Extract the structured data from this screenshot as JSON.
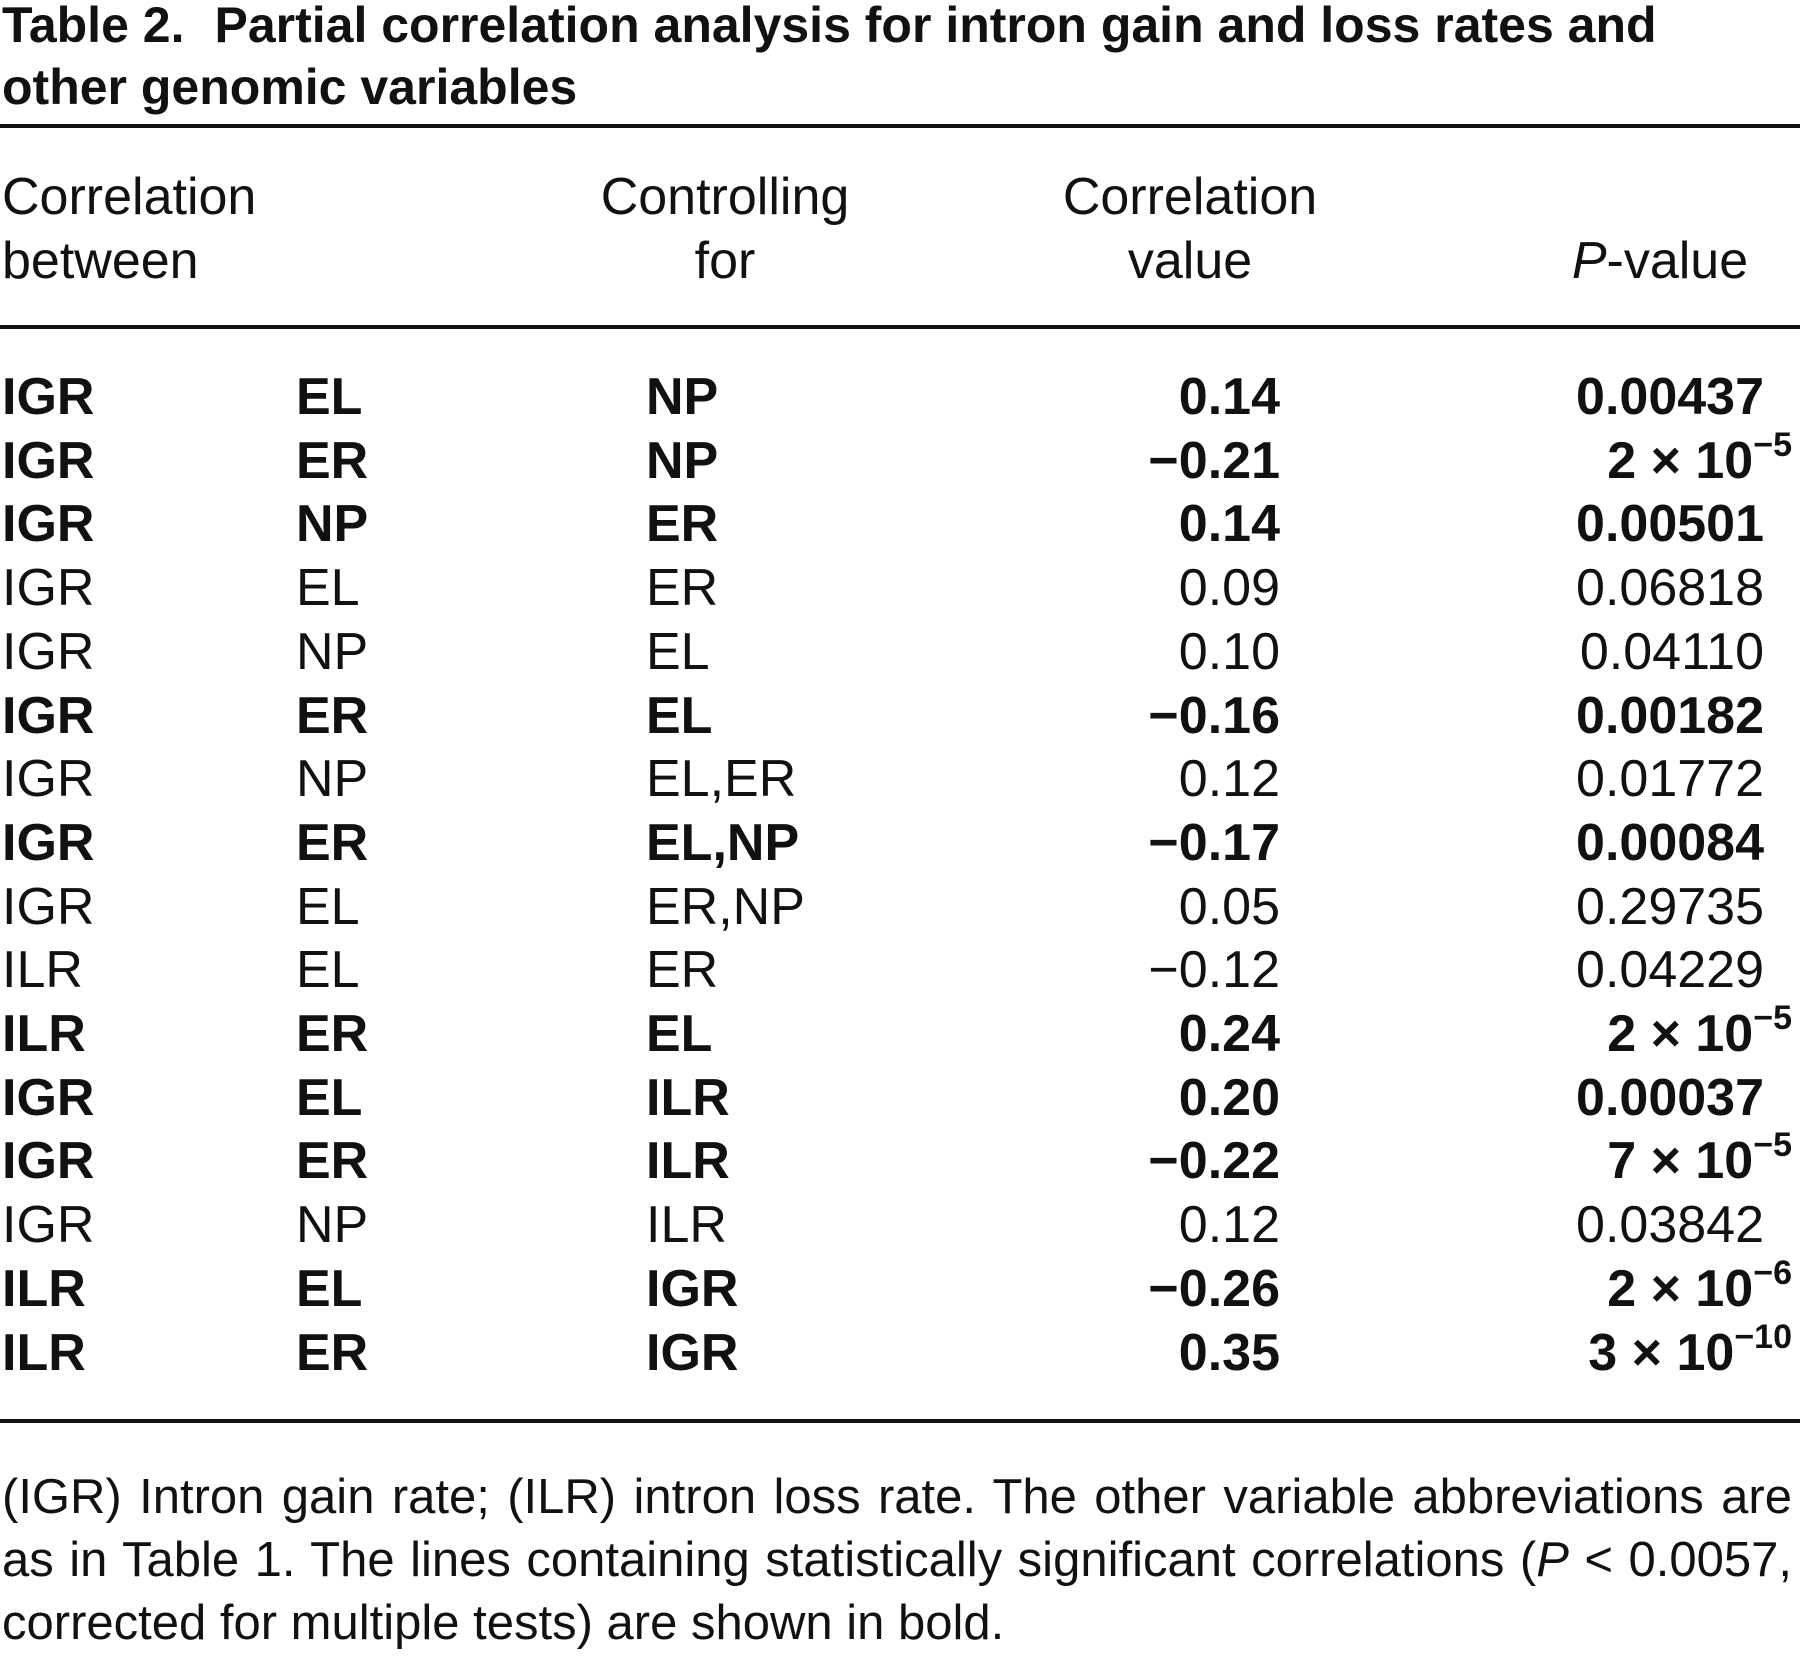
{
  "title": {
    "label": "Table 2.",
    "text": "Partial correlation analysis for intron gain and loss rates and other genomic variables"
  },
  "table": {
    "header": [
      {
        "lines": [
          "Correlation",
          "between"
        ]
      },
      {
        "lines": [
          "Controlling",
          "for"
        ]
      },
      {
        "lines": [
          "Correlation",
          "value"
        ]
      },
      {
        "italic": "P",
        "rest": "-value"
      }
    ],
    "rows": [
      {
        "bold": true,
        "cells": [
          "IGR",
          "EL",
          "NP",
          "0.14",
          "0.00437"
        ]
      },
      {
        "bold": true,
        "cells": [
          "IGR",
          "ER",
          "NP",
          "−0.21",
          {
            "mantissa": "2 × 10",
            "exponent": "−5"
          }
        ]
      },
      {
        "bold": true,
        "cells": [
          "IGR",
          "NP",
          "ER",
          "0.14",
          "0.00501"
        ]
      },
      {
        "bold": false,
        "cells": [
          "IGR",
          "EL",
          "ER",
          "0.09",
          "0.06818"
        ]
      },
      {
        "bold": false,
        "cells": [
          "IGR",
          "NP",
          "EL",
          "0.10",
          "0.04110"
        ]
      },
      {
        "bold": true,
        "cells": [
          "IGR",
          "ER",
          "EL",
          "−0.16",
          "0.00182"
        ]
      },
      {
        "bold": false,
        "cells": [
          "IGR",
          "NP",
          "EL,ER",
          "0.12",
          "0.01772"
        ]
      },
      {
        "bold": true,
        "cells": [
          "IGR",
          "ER",
          "EL,NP",
          "−0.17",
          "0.00084"
        ]
      },
      {
        "bold": false,
        "cells": [
          "IGR",
          "EL",
          "ER,NP",
          "0.05",
          "0.29735"
        ]
      },
      {
        "bold": false,
        "cells": [
          "ILR",
          "EL",
          "ER",
          "−0.12",
          "0.04229"
        ]
      },
      {
        "bold": true,
        "cells": [
          "ILR",
          "ER",
          "EL",
          "0.24",
          {
            "mantissa": "2 × 10",
            "exponent": "−5"
          }
        ]
      },
      {
        "bold": true,
        "cells": [
          "IGR",
          "EL",
          "ILR",
          "0.20",
          "0.00037"
        ]
      },
      {
        "bold": true,
        "cells": [
          "IGR",
          "ER",
          "ILR",
          "−0.22",
          {
            "mantissa": "7 × 10",
            "exponent": "−5"
          }
        ]
      },
      {
        "bold": false,
        "cells": [
          "IGR",
          "NP",
          "ILR",
          "0.12",
          "0.03842"
        ]
      },
      {
        "bold": true,
        "cells": [
          "ILR",
          "EL",
          "IGR",
          "−0.26",
          {
            "mantissa": "2 × 10",
            "exponent": "−6"
          }
        ]
      },
      {
        "bold": true,
        "cells": [
          "ILR",
          "ER",
          "IGR",
          "0.35",
          {
            "mantissa": "3 × 10",
            "exponent": "−10"
          }
        ]
      }
    ]
  },
  "footnote": {
    "before": "(IGR) Intron gain rate; (ILR) intron loss rate. The other variable abbreviations are as in Table 1. The lines containing statistically significant correlations (",
    "italic": "P",
    "after": " < 0.0057, corrected for multiple tests) are shown in bold."
  }
}
